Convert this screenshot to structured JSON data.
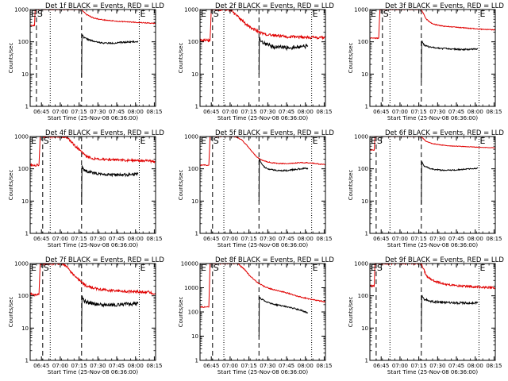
{
  "figure": {
    "title_suffix": " BLACK = Events, RED = LLD",
    "xlabel": "Start Time (25-Nov-08 06:36:00)",
    "ylabel": "Counts/sec",
    "x_tick_labels": [
      "06:45",
      "07:00",
      "07:15",
      "07:30",
      "07:45",
      "08:00",
      "08:15"
    ],
    "y_tick_labels": [
      "1",
      "10",
      "100",
      "1000",
      "10000"
    ],
    "markers": {
      "start": "S",
      "end": "E"
    },
    "colors": {
      "events": "#000000",
      "lld": "#e00000",
      "axes": "#000000"
    }
  },
  "chart_data": [
    {
      "type": "line",
      "title": "Det 1f",
      "x_unit": "minutes since 06:36",
      "xlim": [
        0,
        100
      ],
      "ylim": [
        1,
        1000
      ],
      "ylog": true,
      "vlines_dashed": [
        5,
        41
      ],
      "vlines_dotted": [
        16,
        87
      ],
      "series": [
        {
          "name": "LLD",
          "color": "#e00000",
          "x": [
            0,
            3.5,
            4,
            8,
            10,
            14,
            20,
            25,
            30,
            35,
            38,
            41,
            45,
            50,
            55,
            60,
            65,
            70,
            75,
            80,
            85,
            90,
            95,
            100
          ],
          "y": [
            320,
            320,
            1000,
            1000,
            1000,
            1000,
            1000,
            1000,
            1000,
            1000,
            1000,
            1000,
            700,
            560,
            500,
            470,
            450,
            430,
            420,
            410,
            400,
            390,
            380,
            370
          ],
          "noise": 0.03
        },
        {
          "name": "Events",
          "color": "#000000",
          "x": [
            41,
            41.3,
            43,
            47,
            52,
            58,
            65,
            72,
            80,
            86
          ],
          "y": [
            8,
            170,
            135,
            115,
            100,
            92,
            90,
            95,
            100,
            100
          ],
          "noise": 0.05
        }
      ]
    },
    {
      "type": "line",
      "title": "Det 2f",
      "x_unit": "minutes since 06:36",
      "xlim": [
        0,
        100
      ],
      "ylim": [
        1,
        1000
      ],
      "ylog": true,
      "vlines_dashed": [
        10,
        47
      ],
      "vlines_dotted": [
        19,
        89
      ],
      "series": [
        {
          "name": "LLD",
          "color": "#e00000",
          "x": [
            0,
            8,
            9,
            13,
            20,
            25,
            30,
            35,
            40,
            46,
            50,
            55,
            60,
            65,
            70,
            75,
            80,
            85,
            90,
            95,
            100
          ],
          "y": [
            110,
            110,
            1000,
            1000,
            1000,
            900,
            600,
            400,
            280,
            210,
            180,
            165,
            155,
            150,
            145,
            142,
            140,
            138,
            136,
            135,
            134
          ],
          "noise": 0.1
        },
        {
          "name": "Events",
          "color": "#000000",
          "x": [
            47,
            47.3,
            49,
            52,
            56,
            60,
            65,
            70,
            75,
            80,
            86
          ],
          "y": [
            10,
            120,
            95,
            85,
            75,
            70,
            68,
            66,
            68,
            72,
            75
          ],
          "noise": 0.15
        }
      ]
    },
    {
      "type": "line",
      "title": "Det 3f",
      "x_unit": "minutes since 06:36",
      "xlim": [
        0,
        100
      ],
      "ylim": [
        1,
        1000
      ],
      "ylog": true,
      "vlines_dashed": [
        10,
        41
      ],
      "vlines_dotted": [
        16,
        87
      ],
      "series": [
        {
          "name": "LLD",
          "color": "#e00000",
          "x": [
            0,
            7,
            8,
            12,
            20,
            30,
            38,
            41,
            45,
            50,
            55,
            60,
            65,
            70,
            75,
            80,
            85,
            90,
            95,
            100
          ],
          "y": [
            130,
            130,
            1000,
            1000,
            1000,
            1000,
            1000,
            1000,
            500,
            360,
            320,
            300,
            290,
            280,
            270,
            260,
            250,
            245,
            240,
            235
          ],
          "noise": 0.03
        },
        {
          "name": "Events",
          "color": "#000000",
          "x": [
            41,
            41.3,
            43,
            47,
            52,
            58,
            65,
            72,
            80,
            86
          ],
          "y": [
            6,
            110,
            80,
            70,
            65,
            62,
            60,
            58,
            58,
            60
          ],
          "noise": 0.05
        }
      ]
    },
    {
      "type": "line",
      "title": "Det 4f",
      "x_unit": "minutes since 06:36",
      "xlim": [
        0,
        100
      ],
      "ylim": [
        1,
        1000
      ],
      "ylog": true,
      "vlines_dashed": [
        10,
        41
      ],
      "vlines_dotted": [
        16,
        87
      ],
      "series": [
        {
          "name": "LLD",
          "color": "#e00000",
          "x": [
            0,
            7,
            8,
            12,
            20,
            26,
            30,
            35,
            41,
            45,
            50,
            55,
            60,
            65,
            70,
            75,
            80,
            85,
            90,
            95,
            100
          ],
          "y": [
            130,
            130,
            1000,
            1000,
            1000,
            1000,
            900,
            550,
            330,
            240,
            210,
            200,
            195,
            190,
            188,
            185,
            183,
            182,
            180,
            175,
            160
          ],
          "noise": 0.08
        },
        {
          "name": "Events",
          "color": "#000000",
          "x": [
            41,
            41.3,
            43,
            47,
            52,
            58,
            65,
            72,
            80,
            86
          ],
          "y": [
            8,
            130,
            90,
            80,
            72,
            68,
            65,
            64,
            66,
            70
          ],
          "noise": 0.1
        }
      ]
    },
    {
      "type": "line",
      "title": "Det 5f",
      "x_unit": "minutes since 06:36",
      "xlim": [
        0,
        100
      ],
      "ylim": [
        1,
        1000
      ],
      "ylog": true,
      "vlines_dashed": [
        10,
        47
      ],
      "vlines_dotted": [
        19,
        89
      ],
      "series": [
        {
          "name": "LLD",
          "color": "#e00000",
          "x": [
            0,
            7,
            8,
            12,
            20,
            28,
            33,
            38,
            42,
            46,
            50,
            55,
            60,
            65,
            70,
            75,
            80,
            85,
            90,
            95,
            100
          ],
          "y": [
            130,
            130,
            1000,
            1000,
            1000,
            1000,
            800,
            500,
            320,
            220,
            180,
            160,
            150,
            145,
            145,
            150,
            155,
            155,
            150,
            140,
            135
          ],
          "noise": 0.03
        },
        {
          "name": "Events",
          "color": "#000000",
          "x": [
            47,
            47.3,
            49,
            52,
            56,
            60,
            65,
            70,
            75,
            80,
            86
          ],
          "y": [
            10,
            200,
            140,
            110,
            95,
            90,
            88,
            90,
            95,
            100,
            105
          ],
          "noise": 0.05
        }
      ]
    },
    {
      "type": "line",
      "title": "Det 6f",
      "x_unit": "minutes since 06:36",
      "xlim": [
        0,
        100
      ],
      "ylim": [
        1,
        1000
      ],
      "ylog": true,
      "vlines_dashed": [
        5,
        41
      ],
      "vlines_dotted": [
        16,
        87
      ],
      "series": [
        {
          "name": "LLD",
          "color": "#e00000",
          "x": [
            0,
            3.5,
            4,
            8,
            15,
            25,
            35,
            41,
            45,
            50,
            55,
            60,
            65,
            70,
            75,
            80,
            85,
            90,
            95,
            100
          ],
          "y": [
            380,
            380,
            1000,
            1000,
            1000,
            1000,
            1000,
            1000,
            700,
            600,
            560,
            530,
            510,
            500,
            490,
            480,
            470,
            460,
            455,
            450
          ],
          "noise": 0.02
        },
        {
          "name": "Events",
          "color": "#000000",
          "x": [
            41,
            41.3,
            43,
            47,
            52,
            58,
            65,
            72,
            80,
            86
          ],
          "y": [
            8,
            170,
            125,
            105,
            95,
            90,
            90,
            95,
            100,
            105
          ],
          "noise": 0.04
        }
      ]
    },
    {
      "type": "line",
      "title": "Det 7f",
      "x_unit": "minutes since 06:36",
      "xlim": [
        0,
        100
      ],
      "ylim": [
        1,
        1000
      ],
      "ylog": true,
      "vlines_dashed": [
        10,
        41
      ],
      "vlines_dotted": [
        16,
        87
      ],
      "series": [
        {
          "name": "LLD",
          "color": "#e00000",
          "x": [
            0,
            7,
            8,
            12,
            20,
            25,
            30,
            35,
            41,
            45,
            50,
            55,
            60,
            65,
            70,
            75,
            80,
            85,
            90,
            95,
            100
          ],
          "y": [
            110,
            110,
            1000,
            1000,
            1000,
            1000,
            750,
            420,
            260,
            200,
            175,
            160,
            150,
            145,
            140,
            138,
            136,
            135,
            133,
            130,
            110
          ],
          "noise": 0.09
        },
        {
          "name": "Events",
          "color": "#000000",
          "x": [
            41,
            41.3,
            43,
            47,
            52,
            58,
            65,
            72,
            80,
            86
          ],
          "y": [
            8,
            100,
            70,
            60,
            55,
            52,
            52,
            54,
            56,
            58
          ],
          "noise": 0.12
        }
      ]
    },
    {
      "type": "line",
      "title": "Det 8f",
      "x_unit": "minutes since 06:36",
      "xlim": [
        0,
        100
      ],
      "ylim": [
        1,
        10000
      ],
      "ylog": true,
      "vlines_dashed": [
        10,
        47
      ],
      "vlines_dotted": [
        19,
        89
      ],
      "series": [
        {
          "name": "LLD",
          "color": "#e00000",
          "x": [
            0,
            7,
            8,
            12,
            20,
            30,
            35,
            40,
            45,
            50,
            55,
            60,
            65,
            70,
            75,
            80,
            85,
            90,
            95,
            100
          ],
          "y": [
            160,
            160,
            10000,
            10000,
            10000,
            10000,
            6000,
            3000,
            1800,
            1200,
            950,
            800,
            700,
            600,
            500,
            420,
            360,
            320,
            290,
            260
          ],
          "noise": 0.05
        },
        {
          "name": "Events",
          "color": "#000000",
          "x": [
            47,
            47.3,
            49,
            52,
            56,
            60,
            65,
            70,
            75,
            80,
            86
          ],
          "y": [
            10,
            400,
            340,
            280,
            230,
            200,
            180,
            160,
            140,
            120,
            90
          ],
          "noise": 0.06
        }
      ]
    },
    {
      "type": "line",
      "title": "Det 9f",
      "x_unit": "minutes since 06:36",
      "xlim": [
        0,
        100
      ],
      "ylim": [
        1,
        1000
      ],
      "ylog": true,
      "vlines_dashed": [
        5,
        41
      ],
      "vlines_dotted": [
        16,
        87
      ],
      "series": [
        {
          "name": "LLD",
          "color": "#e00000",
          "x": [
            0,
            3.5,
            4,
            8,
            15,
            25,
            35,
            41,
            45,
            50,
            55,
            60,
            65,
            70,
            75,
            80,
            85,
            90,
            95,
            100
          ],
          "y": [
            200,
            200,
            1000,
            1000,
            1000,
            1000,
            1000,
            1000,
            420,
            300,
            260,
            230,
            215,
            205,
            200,
            195,
            190,
            185,
            180,
            175
          ],
          "noise": 0.07
        },
        {
          "name": "Events",
          "color": "#000000",
          "x": [
            41,
            41.3,
            43,
            47,
            52,
            58,
            65,
            72,
            80,
            86
          ],
          "y": [
            8,
            100,
            80,
            70,
            65,
            62,
            62,
            60,
            60,
            60
          ],
          "noise": 0.08
        }
      ]
    }
  ]
}
